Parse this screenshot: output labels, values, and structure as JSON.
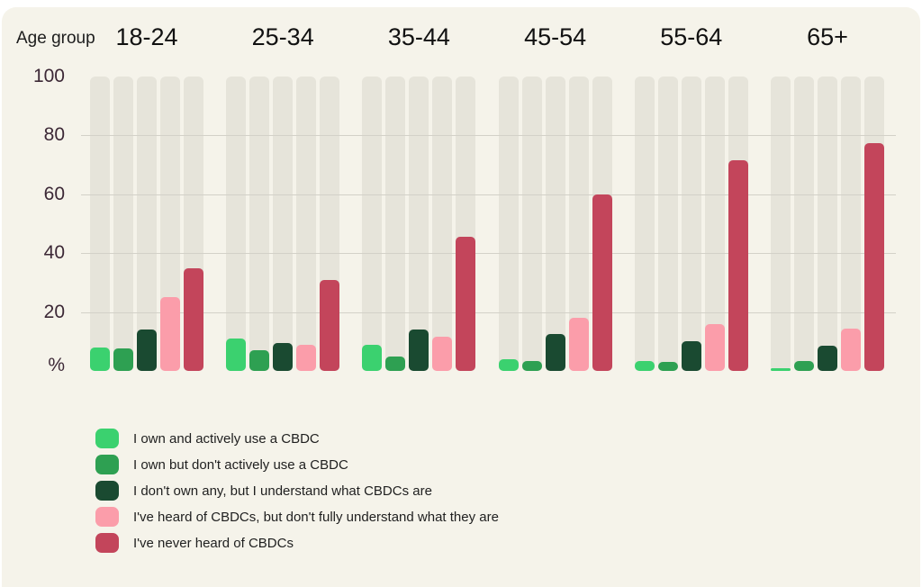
{
  "header": {
    "group_axis_label": "Age group"
  },
  "colors": {
    "page_bg": "#ffffff",
    "panel_bg": "#f5f3ea",
    "track": "#e6e4da",
    "gridline": "#d3d1c8",
    "tick_text": "#3c2836",
    "category_text": "#111111",
    "legend_text": "#1f1f1f"
  },
  "chart_data": {
    "type": "bar",
    "title": "",
    "xlabel": "Age group",
    "ylabel": "%",
    "unit_label": "%",
    "ylim": [
      0,
      100
    ],
    "y_ticks": [
      100,
      80,
      60,
      40,
      20
    ],
    "gridline_values": [
      80,
      60,
      40,
      20
    ],
    "grid": "horizontal",
    "legend_position": "bottom-left",
    "categories": [
      "18-24",
      "25-34",
      "35-44",
      "45-54",
      "55-64",
      "65+"
    ],
    "series": [
      {
        "name": "I own and actively use a CBDC",
        "color": "#3bd16f",
        "values": [
          8,
          11,
          9,
          4,
          3.5,
          1
        ]
      },
      {
        "name": "I own but don't actively use a CBDC",
        "color": "#2ea052",
        "values": [
          7.5,
          7,
          5,
          3.5,
          3,
          3.5
        ]
      },
      {
        "name": "I don't own any, but I understand what CBDCs are",
        "color": "#1a4a31",
        "values": [
          14,
          9.5,
          14,
          12.5,
          10,
          8.5
        ]
      },
      {
        "name": "I've heard of CBDCs, but don't fully understand what they are",
        "color": "#fb9daa",
        "values": [
          25,
          9,
          11.5,
          18,
          16,
          14.5
        ]
      },
      {
        "name": "I've never heard of CBDCs",
        "color": "#c3455b",
        "values": [
          35,
          31,
          45.5,
          60,
          71.5,
          77.5
        ]
      }
    ]
  }
}
